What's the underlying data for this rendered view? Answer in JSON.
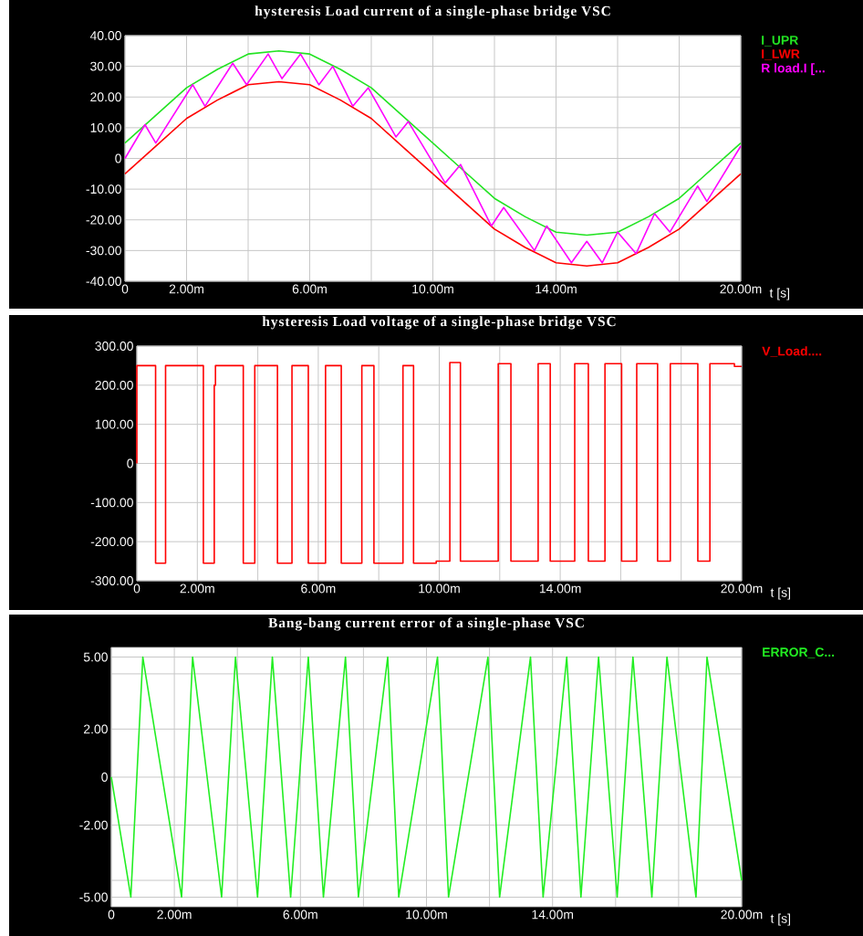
{
  "chart_data": [
    {
      "type": "line",
      "title": "hysteresis Load current of a single-phase bridge VSC",
      "xlabel": "t [s]",
      "grid": true,
      "legend": "top right",
      "xlim": [
        0,
        20
      ],
      "ylim": [
        -40,
        40
      ],
      "xticks": [
        {
          "value": 0,
          "label": "0"
        },
        {
          "value": 2,
          "label": "2.00m"
        },
        {
          "value": 4,
          "label": null
        },
        {
          "value": 6,
          "label": "6.00m"
        },
        {
          "value": 8,
          "label": null
        },
        {
          "value": 10,
          "label": "10.00m"
        },
        {
          "value": 12,
          "label": null
        },
        {
          "value": 14,
          "label": "14.00m"
        },
        {
          "value": 16,
          "label": null
        },
        {
          "value": 18,
          "label": null
        },
        {
          "value": 20,
          "label": "20.00m"
        }
      ],
      "yticks": [
        {
          "value": 40,
          "label": "40.00"
        },
        {
          "value": 30,
          "label": "30.00"
        },
        {
          "value": 20,
          "label": "20.00"
        },
        {
          "value": 10,
          "label": "10.00"
        },
        0,
        {
          "value": -10,
          "label": "-10.00"
        },
        {
          "value": -20,
          "label": "-20.00"
        },
        {
          "value": -30,
          "label": "-30.00"
        },
        {
          "value": -40,
          "label": "-40.00"
        }
      ],
      "x": [
        0,
        1,
        2,
        3,
        4,
        5,
        6,
        7,
        8,
        9,
        10,
        11,
        12,
        13,
        14,
        15,
        16,
        17,
        18,
        19,
        20
      ],
      "series": [
        {
          "name": "I_UPR",
          "color": "#22e322",
          "values": [
            5,
            14,
            23,
            29,
            34,
            35,
            34,
            29,
            23,
            14,
            5,
            -4,
            -13,
            -19,
            -24,
            -25,
            -24,
            -19,
            -13,
            -4,
            5
          ]
        },
        {
          "name": "I_LWR",
          "color": "#ff0000",
          "values": [
            -5,
            4,
            13,
            19,
            24,
            25,
            24,
            19,
            13,
            4,
            -5,
            -14,
            -23,
            -29,
            -34,
            -35,
            -34,
            -29,
            -23,
            -14,
            -5
          ]
        },
        {
          "name": "R load.I [...",
          "color": "#ff00ff",
          "x": [
            0,
            0.65,
            1.0,
            2.2,
            2.6,
            3.5,
            3.95,
            4.65,
            5.1,
            5.7,
            6.3,
            6.75,
            7.4,
            7.9,
            8.8,
            9.2,
            10.4,
            10.9,
            11.9,
            12.3,
            13.3,
            13.7,
            14.5,
            15.0,
            15.5,
            16.0,
            16.6,
            17.2,
            17.7,
            18.6,
            18.9,
            20
          ],
          "values": [
            0,
            11,
            5,
            24,
            17,
            31,
            24,
            34,
            26,
            34,
            24,
            30,
            17,
            23,
            7,
            12,
            -8,
            -2,
            -22,
            -16,
            -30,
            -22,
            -34,
            -27,
            -34,
            -24,
            -31,
            -18,
            -24,
            -9,
            -14,
            4
          ]
        }
      ]
    },
    {
      "type": "step",
      "title": "hysteresis Load voltage of a single-phase bridge VSC",
      "xlabel": "t [s]",
      "grid": true,
      "legend": "top right",
      "xlim": [
        0,
        20
      ],
      "ylim": [
        -300,
        300
      ],
      "xticks": [
        {
          "value": 0,
          "label": "0"
        },
        {
          "value": 2,
          "label": "2.00m"
        },
        {
          "value": 4,
          "label": null
        },
        {
          "value": 6,
          "label": "6.00m"
        },
        {
          "value": 8,
          "label": null
        },
        {
          "value": 10,
          "label": "10.00m"
        },
        {
          "value": 12,
          "label": null
        },
        {
          "value": 14,
          "label": "14.00m"
        },
        {
          "value": 16,
          "label": null
        },
        {
          "value": 18,
          "label": null
        },
        {
          "value": 20,
          "label": "20.00m"
        }
      ],
      "yticks": [
        {
          "value": 300,
          "label": "300.00"
        },
        {
          "value": 200,
          "label": "200.00"
        },
        {
          "value": 100,
          "label": "100.00"
        },
        0,
        {
          "value": -100,
          "label": "-100.00"
        },
        {
          "value": -200,
          "label": "-200.00"
        },
        {
          "value": -300,
          "label": "-300.00"
        }
      ],
      "x": [
        0,
        0,
        0.62,
        0.95,
        2.2,
        2.56,
        2.6,
        3.52,
        3.9,
        4.65,
        5.13,
        5.67,
        6.24,
        6.76,
        7.44,
        7.84,
        8.8,
        9.15,
        9.9,
        10.35,
        10.7,
        11.95,
        12.37,
        13.27,
        13.67,
        14.48,
        14.93,
        15.48,
        16.03,
        16.53,
        17.22,
        17.64,
        18.55,
        18.95,
        19.76,
        20
      ],
      "series": [
        {
          "name": "V_Load....",
          "color": "#ff0000",
          "values": [
            0,
            250,
            -255,
            250,
            -255,
            200,
            250,
            -255,
            250,
            -255,
            250,
            -255,
            250,
            -255,
            250,
            -255,
            250,
            -255,
            -250,
            258,
            -250,
            255,
            -250,
            255,
            -250,
            255,
            -250,
            255,
            -250,
            255,
            -250,
            255,
            -250,
            255,
            248,
            248
          ]
        }
      ]
    },
    {
      "type": "line",
      "title": "Bang-bang current error  of a single-phase VSC",
      "xlabel": "t [s]",
      "grid": true,
      "legend": "top right",
      "xlim": [
        0,
        20
      ],
      "ylim": [
        -5.4,
        5.4
      ],
      "xticks": [
        {
          "value": 0,
          "label": "0"
        },
        {
          "value": 2,
          "label": "2.00m"
        },
        {
          "value": 4,
          "label": null
        },
        {
          "value": 6,
          "label": "6.00m"
        },
        {
          "value": 8,
          "label": null
        },
        {
          "value": 10,
          "label": "10.00m"
        },
        {
          "value": 12,
          "label": null
        },
        {
          "value": 14,
          "label": "14.00m"
        },
        {
          "value": 16,
          "label": null
        },
        {
          "value": 18,
          "label": null
        },
        {
          "value": 20,
          "label": "20.00m"
        }
      ],
      "yticks": [
        {
          "value": 5,
          "label": "5.00"
        },
        {
          "value": 4.3,
          "label": null
        },
        {
          "value": 2,
          "label": "2.00"
        },
        0,
        {
          "value": -2,
          "label": "-2.00"
        },
        {
          "value": -4.3,
          "label": null
        },
        {
          "value": -5,
          "label": "-5.00"
        }
      ],
      "x": [
        0,
        0.62,
        1.0,
        2.23,
        2.58,
        3.5,
        3.94,
        4.64,
        5.11,
        5.69,
        6.25,
        6.73,
        7.43,
        7.84,
        8.77,
        9.12,
        10.35,
        10.7,
        11.95,
        12.32,
        13.3,
        13.7,
        14.45,
        14.9,
        15.46,
        16.05,
        16.55,
        17.15,
        17.63,
        18.55,
        18.9,
        20
      ],
      "series": [
        {
          "name": "ERROR_C...",
          "color": "#22ee22",
          "values": [
            0,
            -5,
            5,
            -5,
            5,
            -5,
            5,
            -5,
            5,
            -5,
            5,
            -5,
            5,
            -5,
            5,
            -5,
            5,
            -5,
            5,
            -5,
            5,
            -5,
            5,
            -5,
            5,
            -5,
            5,
            -5,
            5,
            -5,
            5,
            -4.3
          ]
        }
      ]
    }
  ]
}
